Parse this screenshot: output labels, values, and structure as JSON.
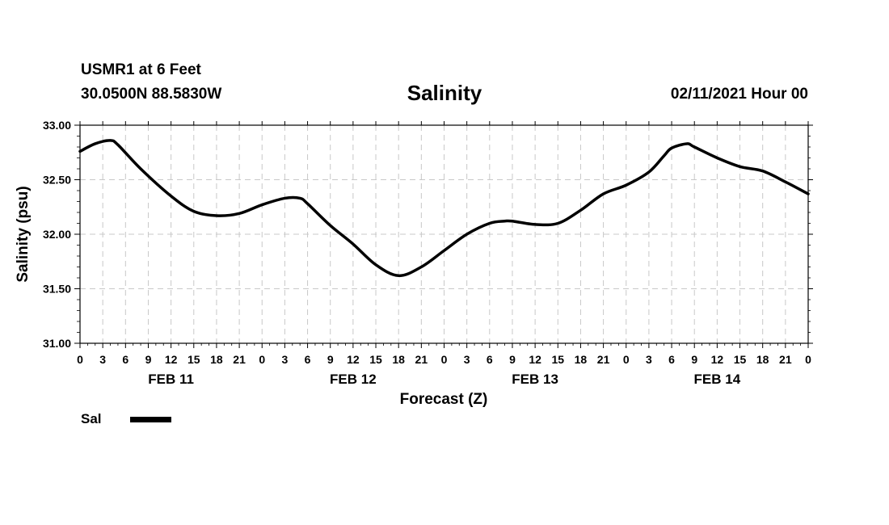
{
  "header": {
    "station": "USMR1 at 6 Feet",
    "coords": "30.0500N 88.5830W",
    "title": "Salinity",
    "stamp": "02/11/2021 Hour 00"
  },
  "legend": {
    "label": "Sal",
    "color": "#000000"
  },
  "chart_data": {
    "type": "line",
    "title": "Salinity",
    "xlabel": "Forecast (Z)",
    "ylabel": "Salinity (psu)",
    "ylim": [
      31.0,
      33.0
    ],
    "yticks": [
      "31.00",
      "31.50",
      "32.00",
      "32.50",
      "33.00"
    ],
    "xlim_hours": [
      0,
      96
    ],
    "xtick_labels": [
      "0",
      "3",
      "6",
      "9",
      "12",
      "15",
      "18",
      "21",
      "0",
      "3",
      "6",
      "9",
      "12",
      "15",
      "18",
      "21",
      "0",
      "3",
      "6",
      "9",
      "12",
      "15",
      "18",
      "21",
      "0",
      "3",
      "6",
      "9",
      "12",
      "15",
      "18",
      "21",
      "0"
    ],
    "date_labels": [
      {
        "label": "FEB 11",
        "hour": 12
      },
      {
        "label": "FEB 12",
        "hour": 36
      },
      {
        "label": "FEB 13",
        "hour": 60
      },
      {
        "label": "FEB 14",
        "hour": 84
      }
    ],
    "grid": true,
    "legend_position": "bottom-left",
    "series": [
      {
        "name": "Sal",
        "color": "#000000",
        "x": [
          0,
          2,
          4,
          5,
          8,
          12,
          15,
          18,
          21,
          24,
          27,
          29,
          30,
          33,
          36,
          39,
          42,
          45,
          48,
          51,
          54,
          56,
          57,
          60,
          63,
          66,
          69,
          72,
          75,
          77,
          78,
          80,
          81,
          84,
          87,
          90,
          93,
          96
        ],
        "values": [
          32.76,
          32.83,
          32.86,
          32.82,
          32.6,
          32.35,
          32.21,
          32.17,
          32.19,
          32.27,
          32.33,
          32.33,
          32.28,
          32.08,
          31.91,
          31.72,
          31.62,
          31.7,
          31.85,
          32.0,
          32.1,
          32.12,
          32.12,
          32.09,
          32.1,
          32.22,
          32.37,
          32.45,
          32.57,
          32.72,
          32.79,
          32.83,
          32.8,
          32.7,
          32.62,
          32.58,
          32.48,
          32.37
        ]
      }
    ]
  }
}
